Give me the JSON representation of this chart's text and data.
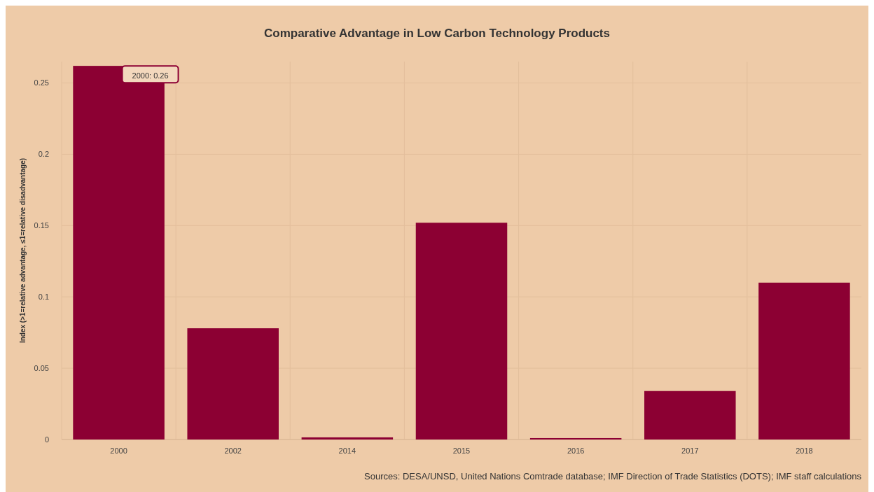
{
  "chart_data": {
    "type": "bar",
    "title": "Comparative Advantage in Low Carbon Technology Products",
    "ylabel": "Index (>1=relative advantage, ≤1=relative disadvantage)",
    "categories": [
      "2000",
      "2002",
      "2014",
      "2015",
      "2016",
      "2017",
      "2018"
    ],
    "values": [
      0.262,
      0.078,
      0.0015,
      0.152,
      0.001,
      0.034,
      0.11
    ],
    "color": "#8c0033",
    "ylim": [
      0,
      0.265
    ],
    "yticks": [
      0,
      0.05,
      0.1,
      0.15,
      0.2,
      0.25
    ],
    "grid": true,
    "annotations": [
      {
        "text": "2000: 0.26",
        "x": "2000",
        "y": 0.26
      },
      "Sources: DESA/UNSD, United Nations Comtrade database; IMF Direction of Trade Statistics (DOTS); IMF staff calculations"
    ]
  }
}
